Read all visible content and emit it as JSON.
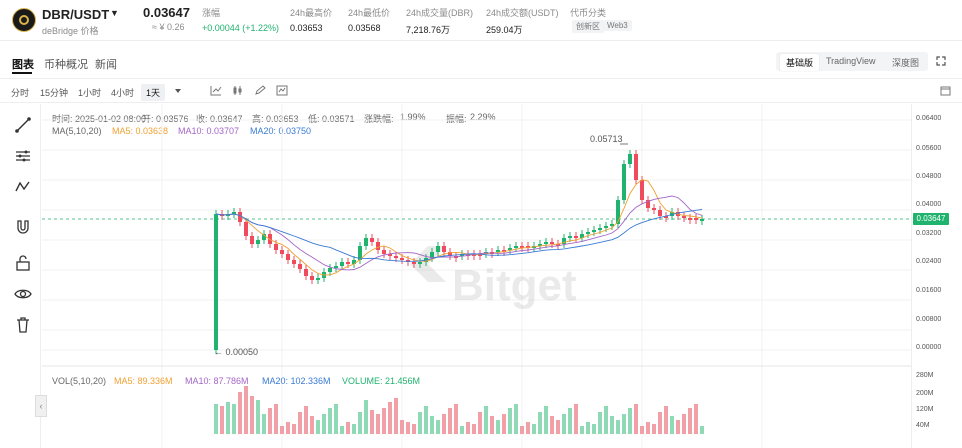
{
  "ticker": {
    "pair": "DBR/USDT",
    "caret": "▼",
    "subtitle": "deBridge 价格",
    "price": "0.03647",
    "fiat": "≈ ¥ 0.26",
    "change_label": "涨幅",
    "change_value": "+0.00044 (+1.22%)",
    "high_label": "24h最高价",
    "high_value": "0.03653",
    "low_label": "24h最低价",
    "low_value": "0.03568",
    "volume_label": "24h成交量(DBR)",
    "volume_value": "7,218.76万",
    "turnover_label": "24h成交额(USDT)",
    "turnover_value": "259.04万",
    "category_label": "代币分类",
    "tags": [
      "创新区",
      "Web3"
    ]
  },
  "tabs": [
    "图表",
    "币种概况",
    "新闻"
  ],
  "views": [
    "基础版",
    "TradingView",
    "深度图"
  ],
  "timeframes": [
    "分时",
    "15分钟",
    "1小时",
    "4小时",
    "1天"
  ],
  "chart_info": {
    "time": "时间: 2025-01-02 08:00",
    "open": "开: 0.03576",
    "close": "收: 0.03647",
    "high": "高: 0.03653",
    "low": "低: 0.03571",
    "change_label": "涨跌幅:",
    "change_value": "1.99%",
    "amp_label": "振幅:",
    "amp_value": "2.29%",
    "ma_label": "MA(5,10,20)",
    "ma5": "MA5: 0.03638",
    "ma10": "MA10: 0.03707",
    "ma20": "MA20: 0.03750",
    "vol_label": "VOL(5,10,20)",
    "vol_ma5": "MA5: 89.336M",
    "vol_ma10": "MA10: 87.786M",
    "vol_ma20": "MA20: 102.336M",
    "volume": "VOLUME: 21.456M",
    "max_label": "0.05713",
    "min_label": "← 0.00050",
    "current_tag": "0.03647",
    "watermark": "Bitget"
  },
  "price_axis": [
    "0.06400",
    "0.05600",
    "0.04800",
    "0.04000",
    "0.03200",
    "0.02400",
    "0.01600",
    "0.00800",
    "0.00000"
  ],
  "volume_axis": [
    "280M",
    "200M",
    "120M",
    "40M"
  ],
  "colors": {
    "up": "#1fb36e",
    "down": "#ef4b5c",
    "ma5": "#f0a030",
    "ma10": "#a466c8",
    "ma20": "#3a7bd5"
  }
}
